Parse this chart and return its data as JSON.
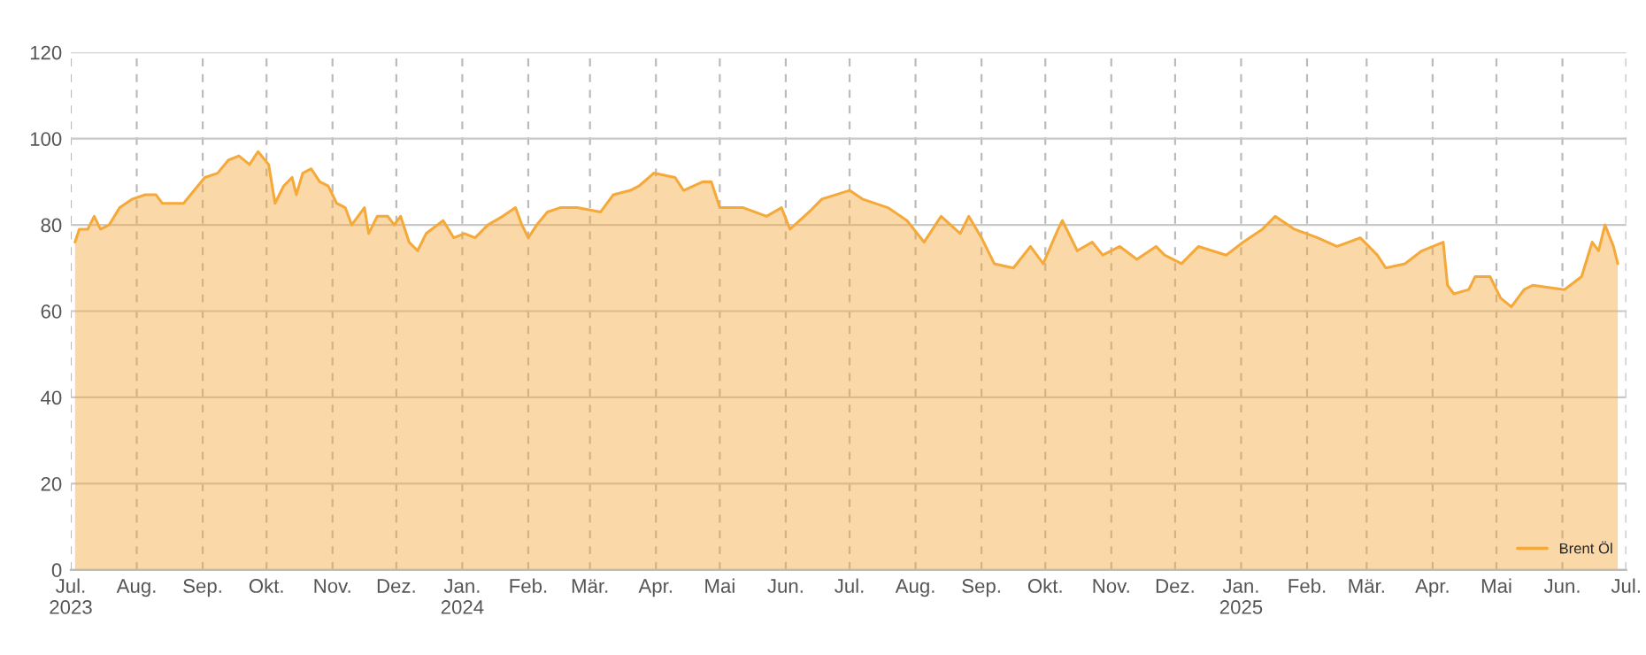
{
  "chart_data": {
    "type": "area",
    "legend": "bottom right",
    "grid": true,
    "xlim": [
      "2023-07-01",
      "2025-07-01"
    ],
    "xticks": [
      {
        "value": "2023-07-01",
        "label": "Jul.\n2023"
      },
      {
        "value": "2023-08-01",
        "label": "Aug."
      },
      {
        "value": "2023-09-01",
        "label": "Sep."
      },
      {
        "value": "2023-10-01",
        "label": "Okt."
      },
      {
        "value": "2023-11-01",
        "label": "Nov."
      },
      {
        "value": "2023-12-01",
        "label": "Dez."
      },
      {
        "value": "2024-01-01",
        "label": "Jan.\n2024"
      },
      {
        "value": "2024-02-01",
        "label": "Feb."
      },
      {
        "value": "2024-03-01",
        "label": "Mär."
      },
      {
        "value": "2024-04-01",
        "label": "Apr."
      },
      {
        "value": "2024-05-01",
        "label": "Mai"
      },
      {
        "value": "2024-06-01",
        "label": "Jun."
      },
      {
        "value": "2024-07-01",
        "label": "Jul."
      },
      {
        "value": "2024-08-01",
        "label": "Aug."
      },
      {
        "value": "2024-09-01",
        "label": "Sep."
      },
      {
        "value": "2024-10-01",
        "label": "Okt."
      },
      {
        "value": "2024-11-01",
        "label": "Nov."
      },
      {
        "value": "2024-12-01",
        "label": "Dez."
      },
      {
        "value": "2025-01-01",
        "label": "Jan.\n2025"
      },
      {
        "value": "2025-02-01",
        "label": "Feb."
      },
      {
        "value": "2025-03-01",
        "label": "Mär."
      },
      {
        "value": "2025-04-01",
        "label": "Apr."
      },
      {
        "value": "2025-05-01",
        "label": "Mai"
      },
      {
        "value": "2025-06-01",
        "label": "Jun."
      },
      {
        "value": "2025-07-01",
        "label": "Jul."
      }
    ],
    "ylim": [
      0,
      120
    ],
    "yticks": [
      0,
      20,
      40,
      60,
      80,
      100,
      120
    ],
    "x": [
      "2023-07-03",
      "2023-07-05",
      "2023-07-09",
      "2023-07-12",
      "2023-07-15",
      "2023-07-19",
      "2023-07-24",
      "2023-07-30",
      "2023-08-05",
      "2023-08-10",
      "2023-08-13",
      "2023-08-23",
      "2023-08-28",
      "2023-09-02",
      "2023-09-08",
      "2023-09-13",
      "2023-09-18",
      "2023-09-23",
      "2023-09-27",
      "2023-10-02",
      "2023-10-05",
      "2023-10-09",
      "2023-10-13",
      "2023-10-15",
      "2023-10-18",
      "2023-10-22",
      "2023-10-26",
      "2023-10-30",
      "2023-11-03",
      "2023-11-07",
      "2023-11-10",
      "2023-11-16",
      "2023-11-18",
      "2023-11-22",
      "2023-11-27",
      "2023-11-30",
      "2023-12-03",
      "2023-12-07",
      "2023-12-11",
      "2023-12-15",
      "2023-12-23",
      "2023-12-28",
      "2024-01-02",
      "2024-01-07",
      "2024-01-13",
      "2024-01-20",
      "2024-01-26",
      "2024-01-29",
      "2024-02-01",
      "2024-02-05",
      "2024-02-10",
      "2024-02-16",
      "2024-02-24",
      "2024-03-06",
      "2024-03-12",
      "2024-03-20",
      "2024-03-24",
      "2024-03-31",
      "2024-04-10",
      "2024-04-14",
      "2024-04-23",
      "2024-04-27",
      "2024-05-01",
      "2024-05-12",
      "2024-05-23",
      "2024-05-30",
      "2024-06-03",
      "2024-06-12",
      "2024-06-18",
      "2024-07-01",
      "2024-07-07",
      "2024-07-19",
      "2024-07-28",
      "2024-08-05",
      "2024-08-13",
      "2024-08-22",
      "2024-08-26",
      "2024-09-01",
      "2024-09-07",
      "2024-09-16",
      "2024-09-24",
      "2024-09-30",
      "2024-10-07",
      "2024-10-09",
      "2024-10-16",
      "2024-10-23",
      "2024-10-28",
      "2024-11-05",
      "2024-11-13",
      "2024-11-22",
      "2024-11-26",
      "2024-12-04",
      "2024-12-12",
      "2024-12-25",
      "2025-01-02",
      "2025-01-11",
      "2025-01-17",
      "2025-01-26",
      "2025-02-06",
      "2025-02-15",
      "2025-02-26",
      "2025-03-06",
      "2025-03-10",
      "2025-03-19",
      "2025-03-27",
      "2025-04-06",
      "2025-04-08",
      "2025-04-11",
      "2025-04-18",
      "2025-04-21",
      "2025-04-28",
      "2025-05-03",
      "2025-05-08",
      "2025-05-14",
      "2025-05-18",
      "2025-06-02",
      "2025-06-10",
      "2025-06-15",
      "2025-06-18",
      "2025-06-21",
      "2025-06-25",
      "2025-06-27"
    ],
    "series": [
      {
        "name": "Brent Öl",
        "color": "#f5a93b",
        "values": [
          76,
          79,
          79,
          82,
          79,
          80,
          84,
          86,
          87,
          87,
          85,
          85,
          88,
          91,
          92,
          95,
          96,
          94,
          97,
          94,
          85,
          89,
          91,
          87,
          92,
          93,
          90,
          89,
          85,
          84,
          80,
          84,
          78,
          82,
          82,
          80,
          82,
          76,
          74,
          78,
          81,
          77,
          78,
          77,
          80,
          82,
          84,
          80,
          77,
          80,
          83,
          84,
          84,
          83,
          87,
          88,
          89,
          92,
          91,
          88,
          90,
          90,
          84,
          84,
          82,
          84,
          79,
          83,
          86,
          88,
          86,
          84,
          81,
          76,
          82,
          78,
          82,
          77,
          71,
          70,
          75,
          71,
          79,
          81,
          74,
          76,
          73,
          75,
          72,
          75,
          73,
          71,
          75,
          73,
          76,
          79,
          82,
          79,
          77,
          75,
          77,
          73,
          70,
          71,
          74,
          76,
          66,
          64,
          65,
          68,
          68,
          63,
          61,
          65,
          66,
          65,
          68,
          76,
          74,
          80,
          75,
          71
        ]
      }
    ]
  }
}
